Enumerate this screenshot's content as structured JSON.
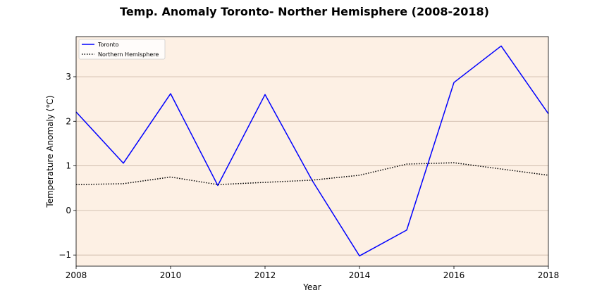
{
  "chart_data": {
    "type": "line",
    "title": "Temp. Anomaly Toronto- Norther Hemisphere (2008-2018)",
    "xlabel": "Year",
    "ylabel": "Temperature Anomaly (℃)",
    "xlim": [
      2008,
      2018
    ],
    "ylim": [
      -1.25,
      3.9
    ],
    "x_ticks": [
      2008,
      2010,
      2012,
      2014,
      2016,
      2018
    ],
    "y_ticks": [
      -1,
      0,
      1,
      2,
      3
    ],
    "y_tick_labels": [
      "−1",
      "0",
      "1",
      "2",
      "3"
    ],
    "grid": "horizontal",
    "legend_position": "top-left",
    "background_color": "#fdf0e4",
    "grid_color": "#c8b4a4",
    "x": [
      2008,
      2009,
      2010,
      2011,
      2012,
      2013,
      2014,
      2015,
      2016,
      2017,
      2018
    ],
    "series": [
      {
        "name": "Toronto",
        "color": "#0000ff",
        "style": "solid",
        "values": [
          2.21,
          1.06,
          2.62,
          0.56,
          2.6,
          0.67,
          -1.02,
          -0.44,
          2.87,
          3.69,
          2.17
        ]
      },
      {
        "name": "Northern Hemisphere",
        "color": "#000000",
        "style": "dotted",
        "values": [
          0.58,
          0.6,
          0.75,
          0.58,
          0.63,
          0.68,
          0.79,
          1.04,
          1.07,
          0.93,
          0.79
        ]
      }
    ]
  }
}
